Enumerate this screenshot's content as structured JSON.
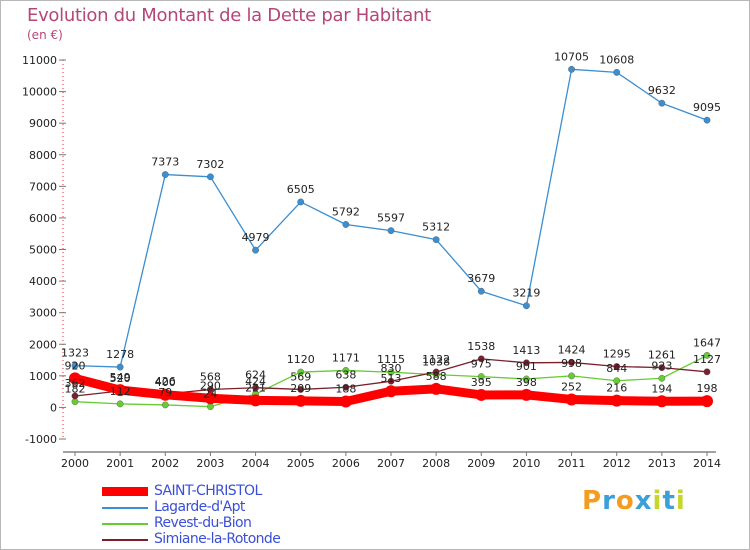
{
  "title": "Evolution du Montant de la Dette par Habitant",
  "unit": "(en €)",
  "logo": {
    "text": "Proxiti",
    "letters": [
      "P",
      "r",
      "o",
      "x",
      "i",
      "t",
      "i"
    ],
    "colors": [
      "#f39c1f",
      "#3b9fd8",
      "#f39c1f",
      "#3b9fd8",
      "#c6d62b",
      "#3b9fd8",
      "#c6d62b"
    ]
  },
  "chart_data": {
    "type": "line",
    "title": "Evolution du Montant de la Dette par Habitant",
    "ylabel": "(en €)",
    "x": [
      "2000",
      "2001",
      "2002",
      "2003",
      "2004",
      "2005",
      "2006",
      "2007",
      "2008",
      "2009",
      "2010",
      "2011",
      "2012",
      "2013",
      "2014"
    ],
    "ylim": [
      -1000,
      11000
    ],
    "yticks": [
      -1000,
      0,
      1000,
      2000,
      3000,
      4000,
      5000,
      6000,
      7000,
      8000,
      9000,
      10000,
      11000
    ],
    "grid": false,
    "legend_position": "bottom-left",
    "series": [
      {
        "name": "SAINT-CHRISTOL",
        "color": "#ff0000",
        "values": [
          920,
          549,
          400,
          290,
          221,
          209,
          188,
          513,
          588,
          395,
          398,
          252,
          216,
          194,
          198
        ],
        "labels": [
          "920",
          "549",
          "400",
          "290",
          "221",
          "209",
          "188",
          "513",
          "588",
          "395",
          "398",
          "252",
          "216",
          "194",
          "198"
        ]
      },
      {
        "name": "Lagarde-d'Apt",
        "color": "#3b8ed0",
        "values": [
          1323,
          1278,
          7373,
          7302,
          4979,
          6505,
          5792,
          5597,
          5312,
          3679,
          3219,
          10705,
          10608,
          9632,
          9095
        ],
        "labels": [
          "1323",
          "1278",
          "7373",
          "7302",
          "4979",
          "6505",
          "5792",
          "5597",
          "5312",
          "3679",
          "3219",
          "10705",
          "10608",
          "9632",
          "9095"
        ]
      },
      {
        "name": "Revest-du-Bion",
        "color": "#66cc33",
        "values": [
          182,
          112,
          79,
          24,
          424,
          1120,
          1171,
          1115,
          1038,
          975,
          901,
          998,
          844,
          923,
          1647
        ],
        "labels": [
          "182",
          "112",
          "79",
          "24",
          "424",
          "1120",
          "1171",
          "1115",
          "1038",
          "975",
          "901",
          "998",
          "844",
          "923",
          "1647"
        ]
      },
      {
        "name": "Simiane-la-Rotonde",
        "color": "#7a1f2b",
        "values": [
          362,
          520,
          426,
          568,
          624,
          569,
          638,
          830,
          1122,
          1538,
          1413,
          1424,
          1295,
          1261,
          1127
        ],
        "labels": [
          "362",
          "520",
          "426",
          "568",
          "624",
          "569",
          "638",
          "830",
          "1122",
          "1538",
          "1413",
          "1424",
          "1295",
          "1261",
          "1127"
        ]
      }
    ]
  }
}
